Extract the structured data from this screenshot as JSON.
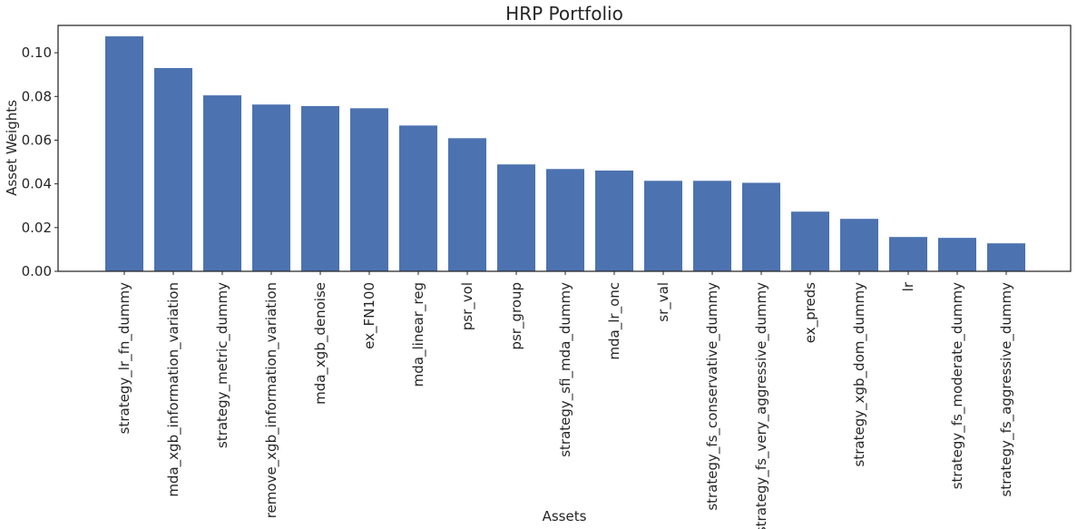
{
  "chart_data": {
    "type": "bar",
    "title": "HRP Portfolio",
    "xlabel": "Assets",
    "ylabel": "Asset Weights",
    "ylim": [
      0,
      0.1125
    ],
    "yticks": [
      0.0,
      0.02,
      0.04,
      0.06,
      0.08,
      0.1
    ],
    "ytick_labels": [
      "0.00",
      "0.02",
      "0.04",
      "0.06",
      "0.08",
      "0.10"
    ],
    "grid": false,
    "bar_color": "#4c72b0",
    "categories": [
      "strategy_lr_fn_dummy",
      "mda_xgb_information_variation",
      "strategy_metric_dummy",
      "remove_xgb_information_variation",
      "mda_xgb_denoise",
      "ex_FN100",
      "mda_linear_reg",
      "psr_vol",
      "psr_group",
      "strategy_sfi_mda_dummy",
      "mda_lr_onc",
      "sr_val",
      "strategy_fs_conservative_dummy",
      "strategy_fs_very_aggressive_dummy",
      "ex_preds",
      "strategy_xgb_dom_dummy",
      "lr",
      "strategy_fs_moderate_dummy",
      "strategy_fs_aggressive_dummy"
    ],
    "values": [
      0.1075,
      0.093,
      0.0805,
      0.0763,
      0.0756,
      0.0746,
      0.0667,
      0.0609,
      0.0489,
      0.0468,
      0.0461,
      0.0414,
      0.0414,
      0.0405,
      0.0273,
      0.024,
      0.0157,
      0.0153,
      0.0128
    ]
  }
}
